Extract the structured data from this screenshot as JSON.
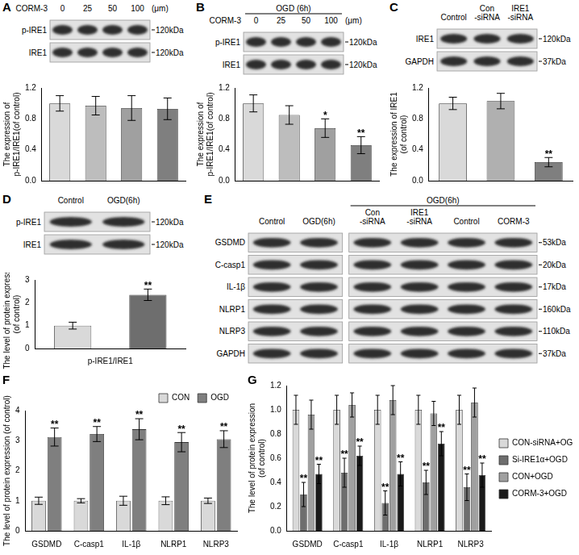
{
  "blots": [
    {
      "label": "A",
      "blocks": [
        {
          "row_label": "CORM-3",
          "unit": "(μm)",
          "lanes": [
            [
              "0"
            ],
            [
              "25"
            ],
            [
              "50"
            ],
            [
              "100"
            ]
          ]
        }
      ],
      "rows": [
        {
          "name": "p-IRE1",
          "size": "120kDa"
        },
        {
          "name": "IRE1",
          "size": "120kDa"
        }
      ]
    },
    {
      "label": "B",
      "blocks": [
        {
          "group": "OGD (6h)",
          "row_label": "CORM-3",
          "unit": "(μm)",
          "lanes": [
            [
              "0"
            ],
            [
              "25"
            ],
            [
              "50"
            ],
            [
              "100"
            ]
          ]
        }
      ],
      "rows": [
        {
          "name": "p-IRE1",
          "size": "120kDa"
        },
        {
          "name": "IRE1",
          "size": "120kDa"
        }
      ]
    },
    {
      "label": "C",
      "blocks": [
        {
          "lanes": [
            [
              "Control"
            ],
            [
              "Con",
              "-siRNA"
            ],
            [
              "IRE1",
              "-siRNA"
            ]
          ]
        }
      ],
      "rows": [
        {
          "name": "IRE1",
          "size": "120kDa"
        },
        {
          "name": "GAPDH",
          "size": "37kDa"
        }
      ]
    },
    {
      "label": "D",
      "blocks": [
        {
          "lanes": [
            [
              "Control"
            ],
            [
              "OGD(6h)"
            ]
          ]
        }
      ],
      "rows": [
        {
          "name": "p-IRE1",
          "size": "120kDa"
        },
        {
          "name": "IRE1",
          "size": "120kDa"
        }
      ]
    },
    {
      "label": "E",
      "blocks": [
        {
          "lanes": [
            [
              "Control"
            ],
            [
              "OGD(6h)"
            ]
          ]
        },
        {
          "group": "OGD(6h)",
          "lanes": [
            [
              "Con",
              "-siRNA"
            ],
            [
              "IRE1",
              "-siRNA"
            ],
            [
              "Control"
            ],
            [
              "CORM-3"
            ]
          ]
        }
      ],
      "rows": [
        {
          "name": "GSDMD",
          "size": "53kDa"
        },
        {
          "name": "C-casp1",
          "size": "20kDa"
        },
        {
          "name": "IL-1β",
          "size": "17kDa"
        },
        {
          "name": "NLRP1",
          "size": "160kDa"
        },
        {
          "name": "NLRP3",
          "size": "110kDa"
        },
        {
          "name": "GAPDH",
          "size": "37kDa"
        }
      ]
    }
  ],
  "chart_data": [
    {
      "type": "bar",
      "categories": [
        null,
        null,
        null,
        null
      ],
      "values": [
        1.0,
        0.97,
        0.94,
        0.93
      ],
      "errors": [
        0.1,
        0.12,
        0.16,
        0.14
      ],
      "colors": [
        "#d9d9d9",
        "#bdbdbd",
        "#a0a0a0",
        "#7f7f7f"
      ],
      "y_label": [
        "The expression of",
        "p-IRE1/IRE1(of control)"
      ],
      "ylim": [
        0,
        1.2
      ],
      "yticks": [
        {
          "value": 0,
          "label": "0.0"
        },
        0.4,
        0.8,
        1.2
      ],
      "grid": false,
      "tick_labels": "y"
    },
    {
      "type": "bar",
      "categories": [
        null,
        null,
        null,
        null
      ],
      "values": [
        1.0,
        0.85,
        0.68,
        0.46
      ],
      "errors": [
        0.11,
        0.12,
        0.12,
        0.11
      ],
      "annotations": [
        null,
        null,
        "*",
        "**"
      ],
      "colors": [
        "#d9d9d9",
        "#bdbdbd",
        "#a0a0a0",
        "#7f7f7f"
      ],
      "y_label": [
        "The expression of",
        "p-IRE1/IRE1(of control)"
      ],
      "ylim": [
        0,
        1.2
      ],
      "yticks": [
        {
          "value": 0,
          "label": "0.0"
        },
        0.4,
        0.8,
        1.2
      ],
      "grid": false,
      "tick_labels": "y"
    },
    {
      "type": "bar",
      "categories": [
        null,
        null,
        null
      ],
      "values": [
        1.0,
        1.03,
        0.24
      ],
      "errors": [
        0.08,
        0.1,
        0.06
      ],
      "annotations": [
        null,
        null,
        "**"
      ],
      "colors": [
        "#d9d9d9",
        "#b0b0b0",
        "#7f7f7f"
      ],
      "y_label": [
        "The expression of IRE1",
        "(of control)"
      ],
      "ylim": [
        0,
        1.2
      ],
      "yticks": [
        {
          "value": 0,
          "label": "0.0"
        },
        0.4,
        0.8,
        1.2
      ],
      "grid": false,
      "tick_labels": "y"
    },
    {
      "type": "bar",
      "categories": [
        null,
        null
      ],
      "values": [
        1.0,
        2.35
      ],
      "errors": [
        0.15,
        0.25
      ],
      "annotations": [
        null,
        "**"
      ],
      "x_label": "p-IRE1/IRE1",
      "colors": [
        "#d9d9d9",
        "#6e6e6e"
      ],
      "y_label": [
        "The level of protein expression",
        "(of control)"
      ],
      "ylim": [
        0,
        3
      ],
      "yticks": [
        0,
        1,
        2,
        3
      ],
      "grid": false,
      "tick_labels": "y"
    },
    {
      "type": "bar",
      "title": "F",
      "categories": [
        "GSDMD",
        "C-casp1",
        "IL-1β",
        "NLRP1",
        "NLRP3"
      ],
      "series": [
        {
          "name": "CON",
          "color": "#d9d9d9",
          "values": [
            1,
            1,
            1,
            1,
            1
          ],
          "errors": [
            0.12,
            0.07,
            0.15,
            0.13,
            0.09
          ]
        },
        {
          "name": "OGD",
          "color": "#7f7f7f",
          "values": [
            3.12,
            3.22,
            3.38,
            2.95,
            3.05
          ],
          "errors": [
            0.3,
            0.25,
            0.35,
            0.32,
            0.28
          ],
          "annotations": [
            "**",
            "**",
            "**",
            "**",
            "**"
          ]
        }
      ],
      "y_label": [
        "The level of protein expression (of control)"
      ],
      "legend": "upper right",
      "ylim": [
        0,
        4
      ],
      "yticks": [
        0,
        1,
        2,
        3,
        4
      ],
      "grid": false
    },
    {
      "type": "bar",
      "title": "G",
      "categories": [
        "GSDMD",
        "C-casp1",
        "IL-1β",
        "NLRP1",
        "NLRP3"
      ],
      "series": [
        {
          "name": "CON-siRNA+OGD",
          "color": "#d9d9d9",
          "values": [
            1,
            1,
            1,
            1,
            1
          ],
          "errors": [
            0.12,
            0.12,
            0.12,
            0.12,
            0.12
          ]
        },
        {
          "name": "Si-IRE1α+OGD",
          "color": "#6e6e6e",
          "values": [
            0.3,
            0.48,
            0.23,
            0.4,
            0.36
          ],
          "errors": [
            0.1,
            0.12,
            0.1,
            0.1,
            0.11
          ],
          "annotations": [
            "**",
            "**",
            "**",
            "**",
            "**"
          ]
        },
        {
          "name": "CON+OGD",
          "color": "#a0a0a0",
          "values": [
            0.96,
            1.04,
            1.08,
            0.97,
            1.06
          ],
          "errors": [
            0.12,
            0.1,
            0.12,
            0.1,
            0.12
          ]
        },
        {
          "name": "CORM-3+OGD",
          "color": "#1a1a1a",
          "values": [
            0.47,
            0.62,
            0.47,
            0.72,
            0.46
          ],
          "errors": [
            0.08,
            0.08,
            0.1,
            0.1,
            0.1
          ],
          "annotations": [
            "**",
            "**",
            "**",
            "**",
            "**"
          ]
        }
      ],
      "y_label": [
        "The level of protein expression",
        "(of control)"
      ],
      "legend": "right",
      "ylim": [
        0,
        1.2
      ],
      "yticks": [
        {
          "value": 0,
          "label": "0.0"
        },
        0.2,
        0.4,
        0.6,
        0.8,
        {
          "value": 1,
          "label": "1.0"
        },
        1.2
      ],
      "grid": false
    }
  ]
}
